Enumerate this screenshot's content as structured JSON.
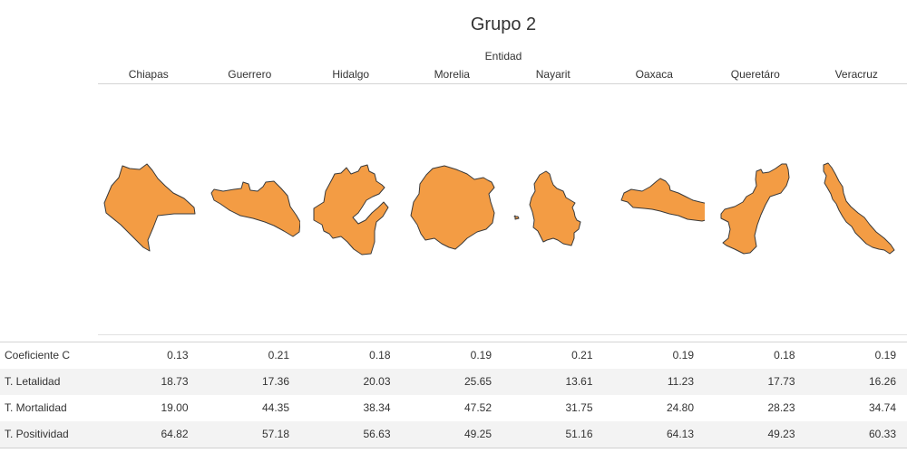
{
  "title": "Grupo 2",
  "column_header": "Entidad",
  "map_fill_color": "#f39c44",
  "map_stroke_color": "#3a3a3a",
  "chart_data": {
    "type": "table",
    "title": "Grupo 2",
    "column_header": "Entidad",
    "categories": [
      "Chiapas",
      "Guerrero",
      "Hidalgo",
      "Morelia",
      "Nayarit",
      "Oaxaca",
      "Queretáro",
      "Veracruz"
    ],
    "rows": [
      {
        "label": "Coeficiente C",
        "values": [
          "0.13",
          "0.21",
          "0.18",
          "0.19",
          "0.21",
          "0.19",
          "0.18",
          "0.19"
        ]
      },
      {
        "label": "T. Letalidad",
        "values": [
          "18.73",
          "17.36",
          "20.03",
          "25.65",
          "13.61",
          "11.23",
          "17.73",
          "16.26"
        ]
      },
      {
        "label": "T. Mortalidad",
        "values": [
          "19.00",
          "44.35",
          "38.34",
          "47.52",
          "31.75",
          "24.80",
          "28.23",
          "34.74"
        ]
      },
      {
        "label": "T. Positividad",
        "values": [
          "64.82",
          "57.18",
          "56.63",
          "49.25",
          "51.16",
          "64.13",
          "49.23",
          "60.33"
        ]
      }
    ]
  }
}
